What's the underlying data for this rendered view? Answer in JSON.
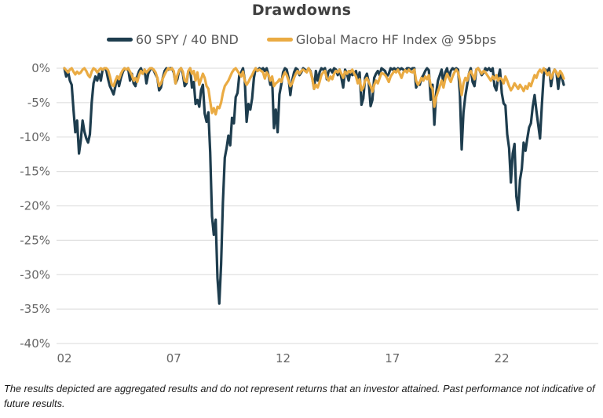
{
  "title": "Drawdowns",
  "legend": [
    {
      "label": "60 SPY / 40 BND",
      "color": "#1E3D4E"
    },
    {
      "label": "Global Macro HF Index @ 95bps",
      "color": "#EAAB43"
    }
  ],
  "footnote": "The results depicted are aggregated results and do not represent returns that an investor attained. Past performance not indicative of future results.",
  "colors": {
    "title": "#404040",
    "legend_text": "#595959",
    "tick_text": "#666666",
    "gridline": "#E0E0E0",
    "series_dark": "#1E3D4E",
    "series_gold": "#EAAB43"
  },
  "chart_data": {
    "type": "line",
    "title": "Drawdowns",
    "xlabel": "",
    "ylabel": "",
    "ylim": [
      -40,
      0
    ],
    "grid": true,
    "legend_position": "top",
    "x_start": "2002-01",
    "x_frequency": "monthly",
    "y_ticks": [
      {
        "label": "0%",
        "value": 0
      },
      {
        "label": "-5%",
        "value": -5
      },
      {
        "label": "-10%",
        "value": -10
      },
      {
        "label": "-15%",
        "value": -15
      },
      {
        "label": "-20%",
        "value": -20
      },
      {
        "label": "-25%",
        "value": -25
      },
      {
        "label": "-30%",
        "value": -30
      },
      {
        "label": "-35%",
        "value": -35
      },
      {
        "label": "-40%",
        "value": -40
      }
    ],
    "x_ticks": [
      {
        "label": "02",
        "month_index": 0
      },
      {
        "label": "07",
        "month_index": 60
      },
      {
        "label": "12",
        "month_index": 120
      },
      {
        "label": "17",
        "month_index": 180
      },
      {
        "label": "22",
        "month_index": 240
      }
    ],
    "series": [
      {
        "name": "60 SPY / 40 BND",
        "color": "#1E3D4E",
        "values": [
          0,
          -1.2,
          -0.4,
          -1.8,
          -2.4,
          -6.0,
          -9.3,
          -7.6,
          -12.4,
          -10.5,
          -7.6,
          -9.2,
          -10.2,
          -10.8,
          -9.6,
          -5.0,
          -2.2,
          -1.2,
          -1.8,
          -0.8,
          -1.8,
          -0.2,
          0,
          -0.3,
          -1.6,
          -2.6,
          -3.2,
          -3.8,
          -2.6,
          -1.2,
          -2.6,
          -1.4,
          -0.6,
          0,
          -0.2,
          0,
          -1.8,
          -0.8,
          -2.2,
          -2.6,
          -1.2,
          -0.4,
          0,
          -0.8,
          -0.2,
          -2.2,
          -0.8,
          -0.2,
          0,
          -0.3,
          -0.9,
          -1.4,
          -3.2,
          -2.8,
          -1.4,
          -0.4,
          0,
          -0.2,
          0,
          0,
          -0.6,
          -2.2,
          -1.6,
          -0.3,
          0,
          -0.8,
          -2.6,
          -2.2,
          -0.5,
          0,
          -2.8,
          -2.0,
          -5.2,
          -4.6,
          -5.6,
          -3.2,
          -2.4,
          -6.6,
          -7.8,
          -6.4,
          -12.2,
          -21.5,
          -24.2,
          -22.0,
          -30.5,
          -34.2,
          -28.5,
          -19.5,
          -13.0,
          -11.6,
          -9.8,
          -11.2,
          -7.2,
          -8.0,
          -4.2,
          -3.6,
          -1.0,
          -0.6,
          0,
          -1.8,
          -7.8,
          -5.2,
          -6.0,
          -4.4,
          -1.4,
          0,
          -0.4,
          0,
          -0.2,
          0,
          -0.4,
          0,
          -1.0,
          -2.4,
          -1.6,
          -8.7,
          -6.0,
          -9.3,
          -3.8,
          -2.4,
          -0.6,
          0,
          -0.2,
          -1.4,
          -3.9,
          -1.8,
          -0.6,
          0,
          -0.2,
          -1.0,
          -0.6,
          0,
          -0.2,
          -0.5,
          0,
          -0.4,
          -1.4,
          -3.0,
          -0.4,
          -1.8,
          -0.6,
          0,
          -0.2,
          0,
          -1.6,
          -0.4,
          -0.2,
          -0.6,
          0,
          -0.2,
          -1.0,
          -0.2,
          -1.4,
          -2.8,
          -0.2,
          -0.8,
          -1.8,
          -0.4,
          -1.0,
          -0.8,
          -0.4,
          -1.8,
          -0.6,
          -5.3,
          -4.4,
          -1.4,
          -0.8,
          -2.0,
          -5.5,
          -4.6,
          -1.4,
          -0.8,
          -0.4,
          -1.0,
          0,
          -0.2,
          -0.4,
          -1.2,
          -0.8,
          0,
          -0.2,
          0,
          -0.3,
          0,
          -0.2,
          0,
          -0.2,
          -0.4,
          0,
          0,
          -0.2,
          0,
          0,
          -2.8,
          -2.2,
          -2.4,
          -1.4,
          -1.0,
          -0.4,
          0,
          -0.3,
          -4.6,
          -2.4,
          -8.2,
          -3.6,
          -1.8,
          -1.0,
          -0.2,
          -2.4,
          -0.6,
          0,
          -1.4,
          -0.4,
          0,
          -0.2,
          0,
          -0.2,
          -3.6,
          -11.8,
          -6.4,
          -4.0,
          -2.4,
          -0.8,
          0,
          -2.0,
          -2.6,
          -0.2,
          0,
          -0.4,
          -1.0,
          -0.6,
          0,
          -0.3,
          0,
          -0.4,
          0,
          -2.6,
          -3.2,
          -1.4,
          -0.2,
          -3.6,
          -5.1,
          -5.4,
          -9.6,
          -11.6,
          -16.6,
          -12.4,
          -11.0,
          -18.6,
          -20.6,
          -16.2,
          -14.6,
          -10.8,
          -12.0,
          -10.2,
          -8.6,
          -8.0,
          -5.6,
          -3.9,
          -6.2,
          -8.2,
          -10.2,
          -5.4,
          -1.0,
          -0.2,
          -0.6,
          0,
          -2.6,
          -0.8,
          -0.2,
          -0.6,
          -3.0,
          -0.6,
          -1.4,
          -2.4
        ]
      },
      {
        "name": "Global Macro HF Index @ 95bps",
        "color": "#EAAB43",
        "values": [
          0,
          -0.3,
          -0.6,
          -0.2,
          0,
          -0.5,
          -0.9,
          -0.5,
          -0.8,
          -0.6,
          -0.2,
          0,
          -0.4,
          -1.0,
          -1.3,
          -0.5,
          0,
          -0.2,
          -0.6,
          -0.3,
          0,
          -0.2,
          0,
          0,
          -0.3,
          -1.2,
          -2.4,
          -2.6,
          -1.8,
          -1.2,
          -1.6,
          -0.8,
          -0.3,
          0,
          -0.2,
          0,
          -0.5,
          -1.0,
          -1.8,
          -1.4,
          -2.0,
          -1.0,
          -0.4,
          -0.8,
          -0.2,
          -0.6,
          -0.3,
          0,
          0,
          -0.2,
          -0.6,
          -1.4,
          -2.6,
          -2.2,
          -1.5,
          -0.9,
          -0.4,
          0,
          -0.2,
          0,
          -0.4,
          -2.2,
          -1.0,
          -0.3,
          0,
          -0.5,
          -1.8,
          -2.0,
          -0.4,
          0,
          -0.8,
          -0.4,
          -1.8,
          -0.6,
          -2.4,
          -1.6,
          -0.8,
          -1.4,
          -2.6,
          -3.0,
          -4.8,
          -6.5,
          -5.8,
          -6.7,
          -5.6,
          -5.8,
          -5.0,
          -3.6,
          -2.6,
          -2.2,
          -1.8,
          -1.2,
          -0.6,
          -0.2,
          0,
          -0.4,
          -0.8,
          -1.2,
          -0.5,
          -1.8,
          -2.4,
          -2.0,
          -1.4,
          -1.0,
          -0.4,
          0,
          -0.4,
          -0.2,
          -0.4,
          -0.6,
          -1.5,
          -0.6,
          -1.0,
          -1.8,
          -1.2,
          -2.6,
          -2.2,
          -2.0,
          -1.6,
          -2.0,
          -1.2,
          -0.6,
          -1.0,
          -1.8,
          -2.6,
          -2.2,
          -1.4,
          -0.8,
          -0.4,
          -0.8,
          -0.4,
          -0.2,
          -0.4,
          -0.6,
          0,
          -0.5,
          -1.5,
          -3.0,
          -2.4,
          -2.8,
          -2.0,
          -1.0,
          -0.6,
          -0.4,
          -1.4,
          -1.8,
          -1.2,
          -1.6,
          -0.8,
          -0.4,
          -0.6,
          -0.2,
          -0.8,
          -1.4,
          -0.5,
          -0.8,
          -0.4,
          -0.6,
          -0.2,
          -0.8,
          -1.2,
          -2.2,
          -1.6,
          -3.2,
          -2.8,
          -1.8,
          -1.4,
          -2.0,
          -2.6,
          -3.4,
          -2.4,
          -1.8,
          -2.2,
          -1.4,
          -0.7,
          -0.8,
          -1.0,
          -1.4,
          -2.0,
          -1.2,
          -0.8,
          -0.4,
          -0.6,
          -0.2,
          -0.8,
          -1.4,
          -0.6,
          -0.3,
          -0.6,
          -0.2,
          -0.5,
          -0.6,
          -0.2,
          -1.8,
          -2.4,
          -2.0,
          -1.4,
          -1.8,
          -1.2,
          -1.6,
          -1.0,
          -2.6,
          -3.0,
          -5.6,
          -4.2,
          -3.4,
          -2.6,
          -1.8,
          -2.8,
          -1.6,
          -0.8,
          -1.4,
          -2.0,
          -1.2,
          -0.6,
          -0.2,
          -0.6,
          -1.8,
          -3.9,
          -2.2,
          -1.4,
          -1.8,
          -0.8,
          -0.4,
          -1.0,
          -1.6,
          -0.2,
          0,
          -0.4,
          -0.8,
          -0.4,
          -0.6,
          -1.0,
          -1.4,
          -1.8,
          -1.2,
          -1.6,
          -1.0,
          -1.8,
          -1.4,
          -1.6,
          -2.2,
          -1.2,
          -1.8,
          -2.6,
          -3.2,
          -2.8,
          -2.2,
          -2.6,
          -3.0,
          -2.4,
          -2.8,
          -3.3,
          -2.6,
          -3.0,
          -2.2,
          -2.6,
          -1.8,
          -1.0,
          -1.4,
          -0.6,
          -0.2,
          -0.6,
          0,
          -0.4,
          -1.0,
          -0.6,
          -1.5,
          -0.8,
          -0.2,
          -0.6,
          -1.2,
          -0.4,
          -0.8,
          -1.5
        ]
      }
    ]
  }
}
